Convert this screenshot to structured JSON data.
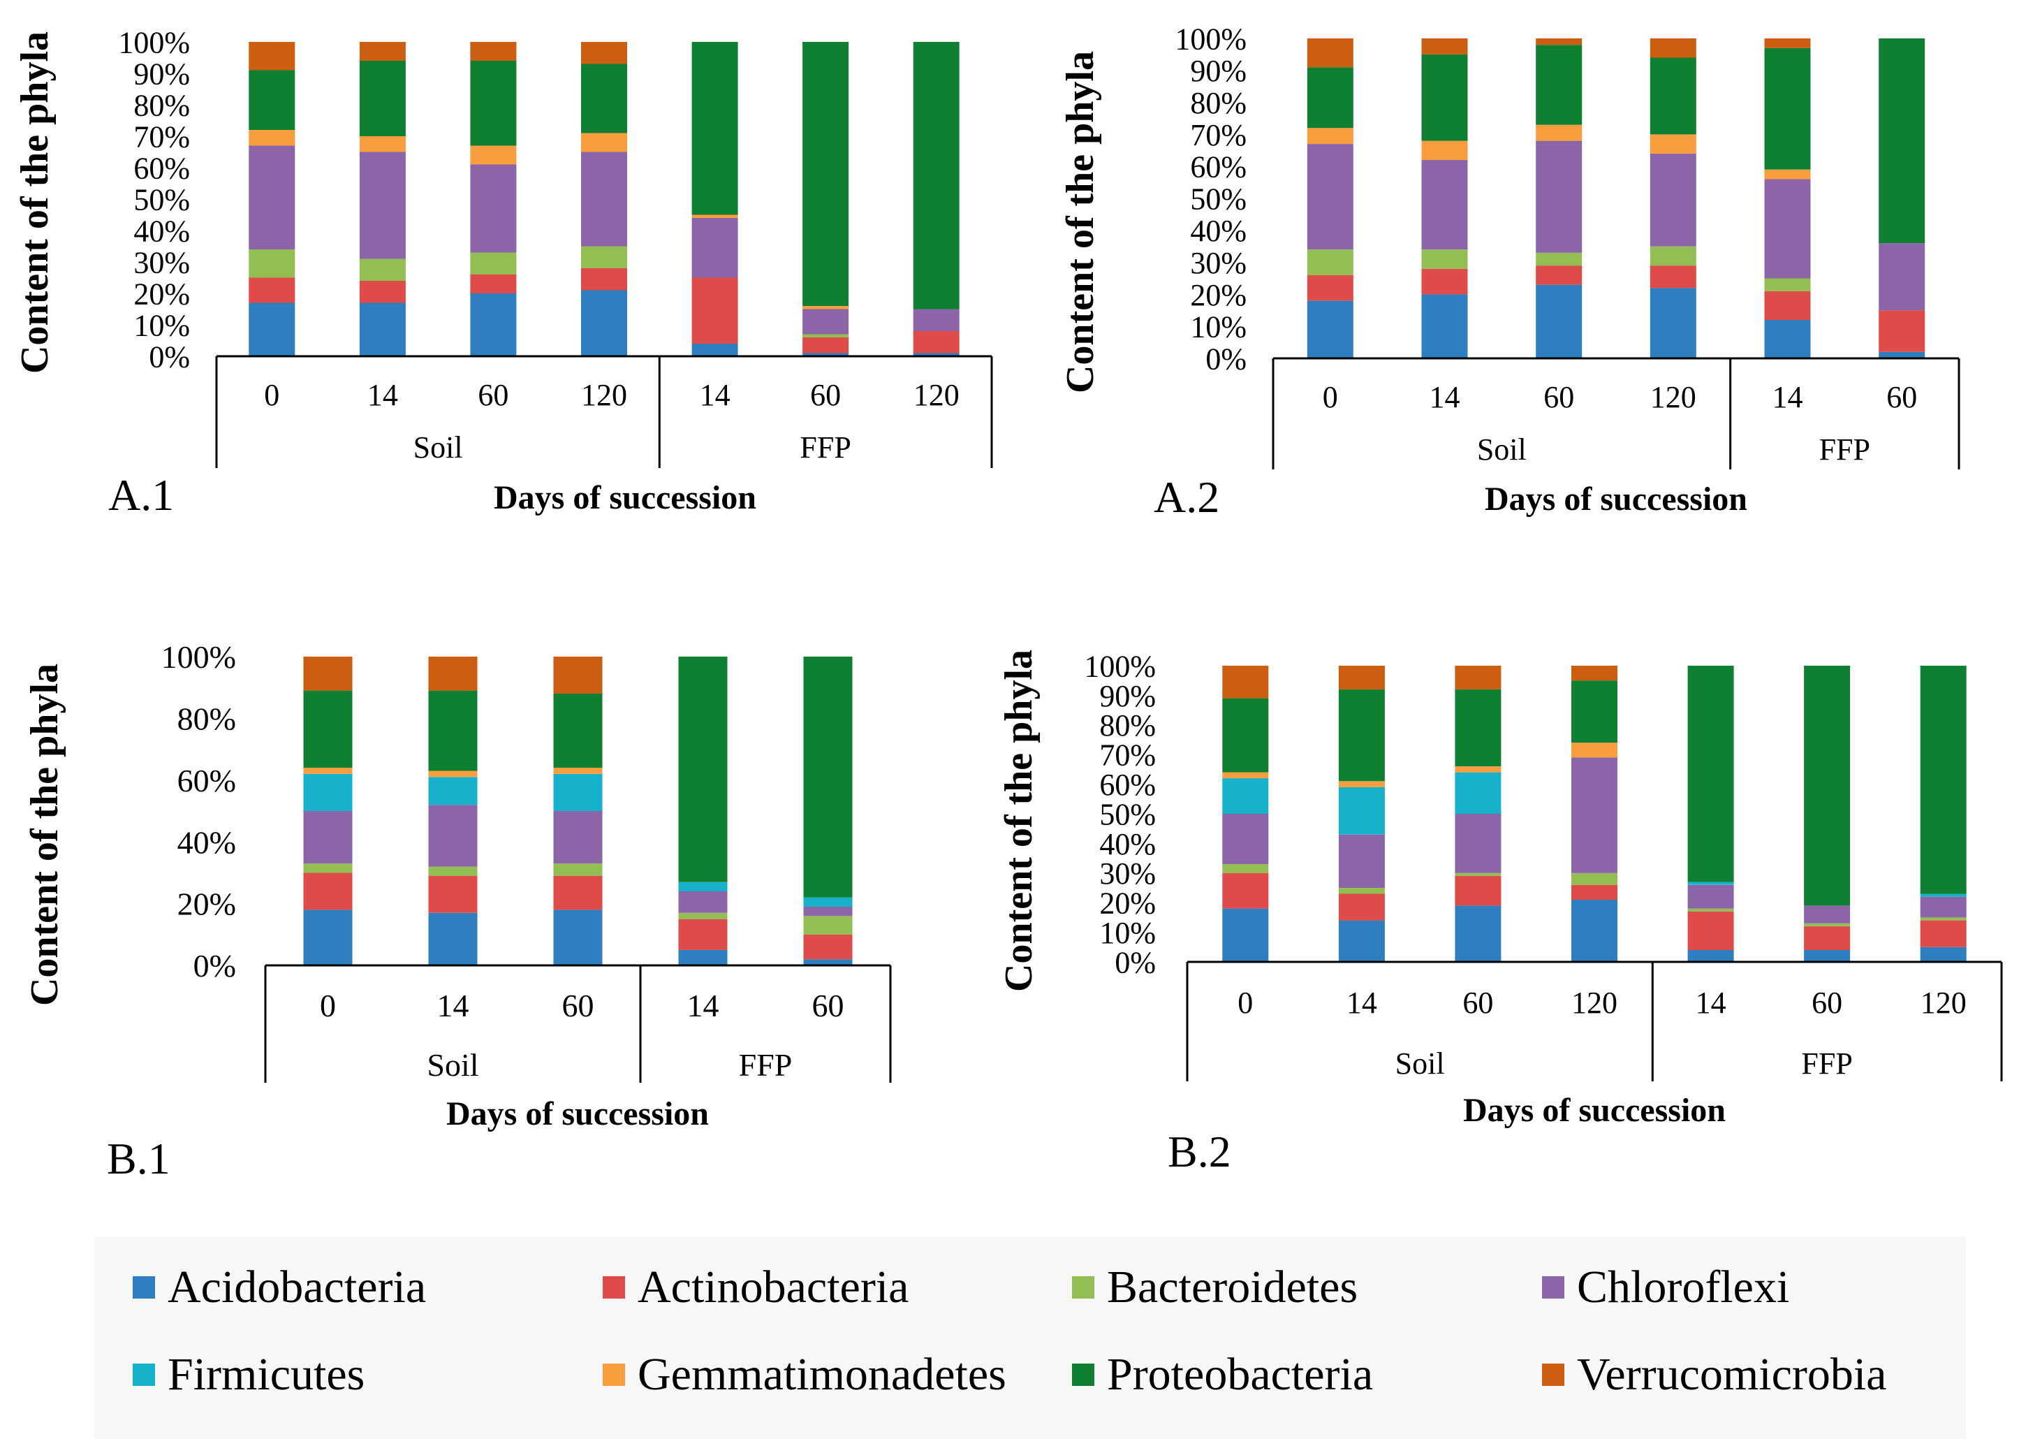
{
  "legend": {
    "items": [
      {
        "name": "Acidobacteria",
        "color": "#2E7EC0"
      },
      {
        "name": "Actinobacteria",
        "color": "#DE4B48"
      },
      {
        "name": "Bacteroidetes",
        "color": "#92BE53"
      },
      {
        "name": "Chloroflexi",
        "color": "#8C65A9"
      },
      {
        "name": "Firmicutes",
        "color": "#18B1CB"
      },
      {
        "name": "Gemmatimonadetes",
        "color": "#F89E3E"
      },
      {
        "name": "Proteobacteria",
        "color": "#0F7F32"
      },
      {
        "name": "Verrucomicrobia",
        "color": "#CB5E10"
      }
    ]
  },
  "chart_data": [
    {
      "panel": "A.1",
      "type": "bar",
      "stacked": true,
      "ylabel": "Content of the phyla",
      "xlabel": "Days of succession",
      "yticks": [
        "0%",
        "10%",
        "20%",
        "30%",
        "40%",
        "50%",
        "60%",
        "70%",
        "80%",
        "90%",
        "100%"
      ],
      "ylim": [
        0,
        100
      ],
      "groups": [
        {
          "label": "Soil",
          "count": 4
        },
        {
          "label": "FFP",
          "count": 3
        }
      ],
      "categories": [
        "0",
        "14",
        "60",
        "120",
        "14",
        "60",
        "120"
      ],
      "series": [
        {
          "name": "Acidobacteria",
          "values": [
            17,
            17,
            20,
            21,
            4,
            1,
            1
          ]
        },
        {
          "name": "Actinobacteria",
          "values": [
            8,
            7,
            6,
            7,
            21,
            5,
            7
          ]
        },
        {
          "name": "Bacteroidetes",
          "values": [
            9,
            7,
            7,
            7,
            0,
            1,
            0
          ]
        },
        {
          "name": "Chloroflexi",
          "values": [
            33,
            34,
            28,
            30,
            19,
            8,
            7
          ]
        },
        {
          "name": "Firmicutes",
          "values": [
            0,
            0,
            0,
            0,
            0,
            0,
            0
          ]
        },
        {
          "name": "Gemmatimonadetes",
          "values": [
            5,
            5,
            6,
            6,
            1,
            1,
            0
          ]
        },
        {
          "name": "Proteobacteria",
          "values": [
            19,
            24,
            27,
            22,
            55,
            84,
            85
          ]
        },
        {
          "name": "Verrucomicrobia",
          "values": [
            9,
            6,
            6,
            7,
            0,
            0,
            0
          ]
        }
      ]
    },
    {
      "panel": "A.2",
      "type": "bar",
      "stacked": true,
      "ylabel": "Content of the phyla",
      "xlabel": "Days of succession",
      "yticks": [
        "0%",
        "10%",
        "20%",
        "30%",
        "40%",
        "50%",
        "60%",
        "70%",
        "80%",
        "90%",
        "100%"
      ],
      "ylim": [
        0,
        100
      ],
      "groups": [
        {
          "label": "Soil",
          "count": 4
        },
        {
          "label": "FFP",
          "count": 2
        }
      ],
      "categories": [
        "0",
        "14",
        "60",
        "120",
        "14",
        "60"
      ],
      "series": [
        {
          "name": "Acidobacteria",
          "values": [
            18,
            20,
            23,
            22,
            12,
            2
          ]
        },
        {
          "name": "Actinobacteria",
          "values": [
            8,
            8,
            6,
            7,
            9,
            13
          ]
        },
        {
          "name": "Bacteroidetes",
          "values": [
            8,
            6,
            4,
            6,
            4,
            0
          ]
        },
        {
          "name": "Chloroflexi",
          "values": [
            33,
            28,
            35,
            29,
            31,
            21
          ]
        },
        {
          "name": "Firmicutes",
          "values": [
            0,
            0,
            0,
            0,
            0,
            0
          ]
        },
        {
          "name": "Gemmatimonadetes",
          "values": [
            5,
            6,
            5,
            6,
            3,
            0
          ]
        },
        {
          "name": "Proteobacteria",
          "values": [
            19,
            27,
            25,
            24,
            38,
            64
          ]
        },
        {
          "name": "Verrucomicrobia",
          "values": [
            9,
            5,
            2,
            6,
            3,
            0
          ]
        }
      ]
    },
    {
      "panel": "B.1",
      "type": "bar",
      "stacked": true,
      "ylabel": "Content of the phyla",
      "xlabel": "Days of succession",
      "yticks": [
        "0%",
        "20%",
        "40%",
        "60%",
        "80%",
        "100%"
      ],
      "ylim": [
        0,
        100
      ],
      "groups": [
        {
          "label": "Soil",
          "count": 3
        },
        {
          "label": "FFP",
          "count": 2
        }
      ],
      "categories": [
        "0",
        "14",
        "60",
        "14",
        "60"
      ],
      "series": [
        {
          "name": "Acidobacteria",
          "values": [
            18,
            17,
            18,
            5,
            2
          ]
        },
        {
          "name": "Actinobacteria",
          "values": [
            12,
            12,
            11,
            10,
            8
          ]
        },
        {
          "name": "Bacteroidetes",
          "values": [
            3,
            3,
            4,
            2,
            6
          ]
        },
        {
          "name": "Chloroflexi",
          "values": [
            17,
            20,
            17,
            7,
            3
          ]
        },
        {
          "name": "Firmicutes",
          "values": [
            12,
            9,
            12,
            3,
            3
          ]
        },
        {
          "name": "Gemmatimonadetes",
          "values": [
            2,
            2,
            2,
            0,
            0
          ]
        },
        {
          "name": "Proteobacteria",
          "values": [
            25,
            26,
            24,
            73,
            78
          ]
        },
        {
          "name": "Verrucomicrobia",
          "values": [
            11,
            11,
            12,
            0,
            0
          ]
        }
      ]
    },
    {
      "panel": "B.2",
      "type": "bar",
      "stacked": true,
      "ylabel": "Content of the phyla",
      "xlabel": "Days of succession",
      "yticks": [
        "0%",
        "10%",
        "20%",
        "30%",
        "40%",
        "50%",
        "60%",
        "70%",
        "80%",
        "90%",
        "100%"
      ],
      "ylim": [
        0,
        100
      ],
      "groups": [
        {
          "label": "Soil",
          "count": 4
        },
        {
          "label": "FFP",
          "count": 3
        }
      ],
      "categories": [
        "0",
        "14",
        "60",
        "120",
        "14",
        "60",
        "120"
      ],
      "series": [
        {
          "name": "Acidobacteria",
          "values": [
            18,
            14,
            19,
            21,
            4,
            4,
            5
          ]
        },
        {
          "name": "Actinobacteria",
          "values": [
            12,
            9,
            10,
            5,
            13,
            8,
            9
          ]
        },
        {
          "name": "Bacteroidetes",
          "values": [
            3,
            2,
            1,
            4,
            1,
            1,
            1
          ]
        },
        {
          "name": "Chloroflexi",
          "values": [
            17,
            18,
            20,
            39,
            8,
            6,
            7
          ]
        },
        {
          "name": "Firmicutes",
          "values": [
            12,
            16,
            14,
            0,
            1,
            0,
            1
          ]
        },
        {
          "name": "Gemmatimonadetes",
          "values": [
            2,
            2,
            2,
            5,
            0,
            0,
            0
          ]
        },
        {
          "name": "Proteobacteria",
          "values": [
            25,
            31,
            26,
            21,
            73,
            81,
            77
          ]
        },
        {
          "name": "Verrucomicrobia",
          "values": [
            11,
            8,
            8,
            5,
            0,
            0,
            0
          ]
        }
      ]
    }
  ]
}
